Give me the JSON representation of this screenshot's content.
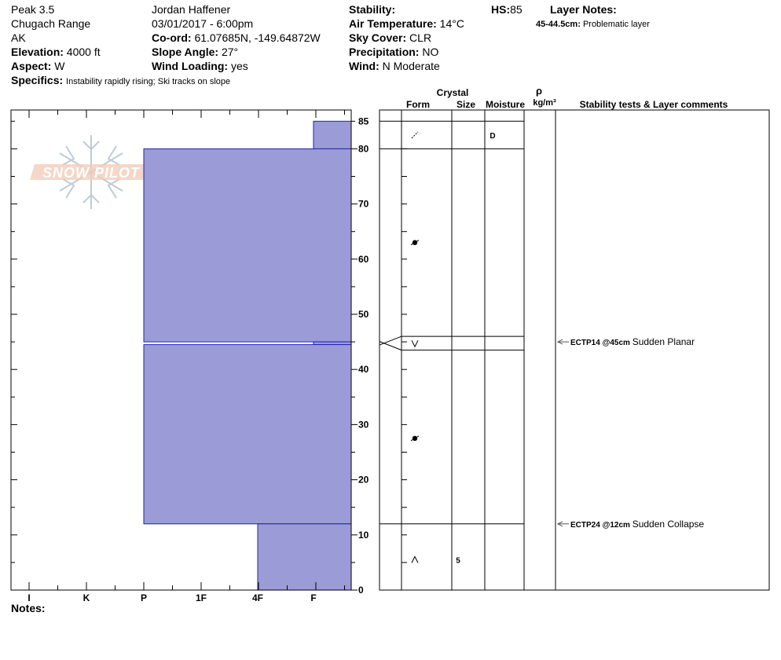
{
  "header": {
    "col1": {
      "location": "Peak 3.5",
      "range": "Chugach Range",
      "state": "AK",
      "elevation_label": "Elevation:",
      "elevation": "4000 ft",
      "aspect_label": "Aspect:",
      "aspect": "W",
      "specifics_label": "Specifics:",
      "specifics": "Instability rapidly rising;  Ski tracks on slope"
    },
    "col2": {
      "observer": "Jordan Haffener",
      "datetime": "03/01/2017 - 6:00pm",
      "coord_label": "Co-ord:",
      "coord": "61.07685N, -149.64872W",
      "slope_label": "Slope Angle:",
      "slope": "27°",
      "wind_loading_label": "Wind Loading:",
      "wind_loading": "yes"
    },
    "col3": {
      "stability_label": "Stability:",
      "stability": "",
      "air_temp_label": "Air Temperature:",
      "air_temp": "14°C",
      "sky_label": "Sky Cover:",
      "sky": "CLR",
      "precip_label": "Precipitation:",
      "precip": "NO",
      "wind_label": "Wind:",
      "wind": "N Moderate"
    },
    "hs_label": "HS:",
    "hs": "85",
    "layer_notes_label": "Layer Notes:",
    "layer_note_depth": "45-44.5cm:",
    "layer_note_text": "Problematic layer"
  },
  "logo_text": "SNOW PILOT",
  "notes_label": "Notes:",
  "column_headers": {
    "crystal": "Crystal",
    "form": "Form",
    "size": "Size",
    "moisture": "Moisture",
    "rho": "ρ",
    "density_unit": "kg/m³",
    "tests": "Stability tests & Layer comments"
  },
  "chart_data": {
    "type": "snow_profile",
    "hardness_scale": [
      "I",
      "K",
      "P",
      "1F",
      "4F",
      "F"
    ],
    "depth_range_cm": [
      0,
      85
    ],
    "depth_ticks": [
      0,
      10,
      20,
      30,
      40,
      50,
      60,
      70,
      80,
      85
    ],
    "hardness_layers": [
      {
        "top": 85,
        "bottom": 80,
        "hardness": "F"
      },
      {
        "top": 80,
        "bottom": 45,
        "hardness": "P"
      },
      {
        "top": 45,
        "bottom": 44.5,
        "hardness": "F"
      },
      {
        "top": 44.5,
        "bottom": 12,
        "hardness": "P"
      },
      {
        "top": 12,
        "bottom": 0,
        "hardness": "4F"
      }
    ],
    "layer_boundaries": [
      85,
      80,
      46,
      43.5,
      12
    ],
    "crystal_forms": [
      {
        "depth": 82.5,
        "symbol": "decomposing-fragments",
        "moisture": "D"
      },
      {
        "depth": 63,
        "symbol": "melt-form"
      },
      {
        "depth": 44.7,
        "symbol": "depth-hoar"
      },
      {
        "depth": 27.5,
        "symbol": "melt-form"
      },
      {
        "depth": 5.5,
        "symbol": "faceted",
        "size": "5"
      }
    ],
    "stability_tests": [
      {
        "depth": 45,
        "code": "ECTP14 @45cm",
        "text": "Sudden Planar"
      },
      {
        "depth": 12,
        "code": "ECTP24 @12cm",
        "text": "Sudden Collapse"
      }
    ],
    "fill_color": "#9b9bd7",
    "edge_color": "#2323b4"
  }
}
